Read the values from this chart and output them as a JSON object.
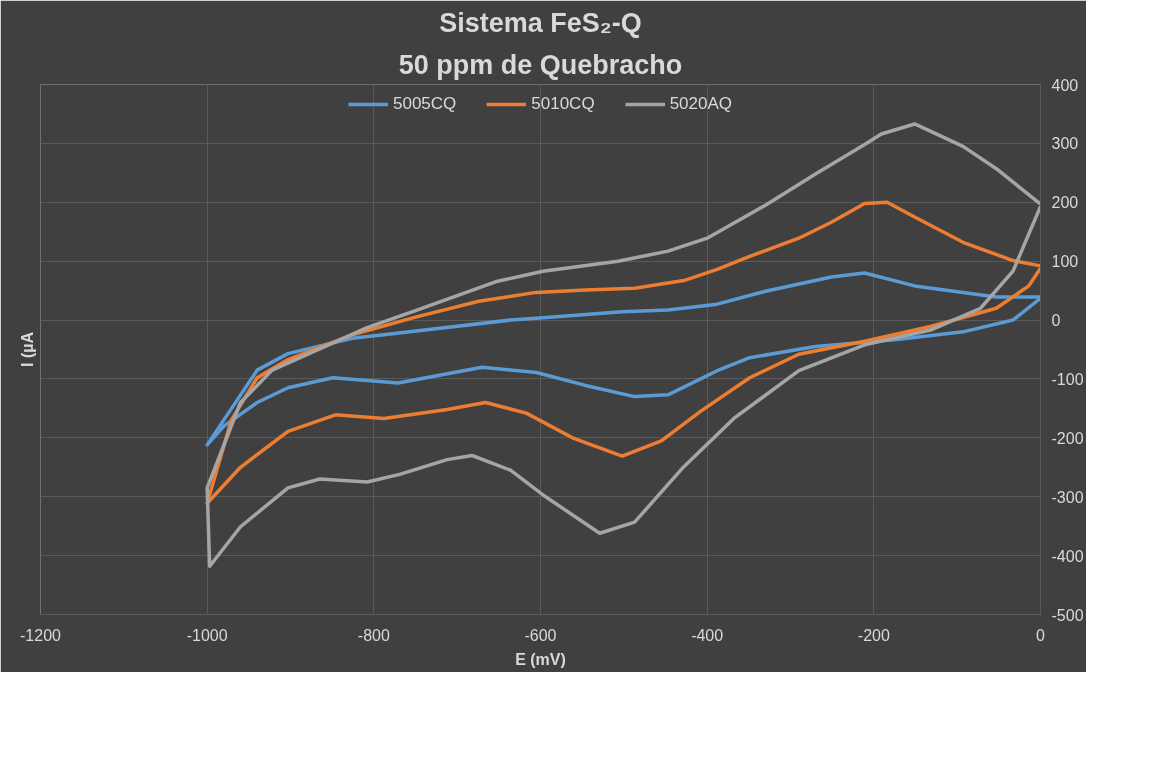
{
  "chart_data": {
    "type": "line",
    "title": "Sistema FeS₂-Q",
    "subtitle": "50 ppm de Quebracho",
    "xlabel": "E (mV)",
    "ylabel": "I (µA",
    "xlim": [
      -1200,
      0
    ],
    "xticks": [
      -1200,
      -1000,
      -800,
      -600,
      -400,
      -200,
      0
    ],
    "ylim": [
      -500,
      400
    ],
    "yticks": [
      -500,
      -400,
      -300,
      -200,
      -100,
      0,
      100,
      200,
      300,
      400
    ],
    "grid": true,
    "legend": "top",
    "marker": "none",
    "line_style": "solid",
    "series": [
      {
        "name": "5005CQ",
        "color": "#5b9bd5",
        "x": [
          0,
          -53,
          -151,
          -211,
          -251,
          -330,
          -388,
          -447,
          -502,
          -605,
          -636,
          -788,
          -826,
          -903,
          -940,
          -1000,
          -980,
          -940,
          -903,
          -849,
          -771,
          -670,
          -605,
          -546,
          -487,
          -447,
          -388,
          -349,
          -270,
          -172,
          -93,
          -33,
          0
        ],
        "values": [
          39,
          39,
          58,
          80,
          73,
          49,
          27,
          17,
          14,
          3,
          0,
          -25,
          -31,
          -57,
          -85,
          -212,
          -180,
          -140,
          -115,
          -98,
          -107,
          -80,
          -89,
          -111,
          -130,
          -127,
          -86,
          -64,
          -45,
          -33,
          -20,
          0,
          37
        ]
      },
      {
        "name": "5010CQ",
        "color": "#ed7d31",
        "x": [
          0,
          -33,
          -93,
          -151,
          -184,
          -211,
          -251,
          -290,
          -349,
          -388,
          -428,
          -487,
          -546,
          -605,
          -674,
          -750,
          -826,
          -903,
          -940,
          -971,
          -1000,
          -960,
          -903,
          -846,
          -788,
          -712,
          -666,
          -617,
          -560,
          -502,
          -455,
          -408,
          -349,
          -290,
          -211,
          -132,
          -53,
          -14,
          0
        ],
        "values": [
          92,
          101,
          132,
          175,
          200,
          198,
          166,
          139,
          108,
          86,
          67,
          54,
          51,
          47,
          32,
          5,
          -25,
          -67,
          -98,
          -170,
          -311,
          -250,
          -189,
          -161,
          -167,
          -152,
          -140,
          -158,
          -201,
          -231,
          -205,
          -155,
          -98,
          -58,
          -36,
          -11,
          20,
          58,
          88
        ]
      },
      {
        "name": "5020AQ",
        "color": "#a5a5a5",
        "x": [
          0,
          -53,
          -93,
          -151,
          -191,
          -211,
          -270,
          -330,
          -400,
          -447,
          -507,
          -597,
          -654,
          -750,
          -808,
          -865,
          -922,
          -960,
          -1000,
          -997,
          -960,
          -903,
          -865,
          -808,
          -769,
          -712,
          -682,
          -636,
          -597,
          -529,
          -487,
          -428,
          -368,
          -290,
          -211,
          -132,
          -72,
          -33,
          0
        ],
        "values": [
          197,
          257,
          295,
          333,
          316,
          298,
          248,
          195,
          139,
          117,
          100,
          83,
          65,
          16,
          -13,
          -49,
          -85,
          -140,
          -285,
          -418,
          -351,
          -285,
          -270,
          -275,
          -262,
          -237,
          -230,
          -255,
          -297,
          -362,
          -343,
          -249,
          -167,
          -86,
          -42,
          -17,
          20,
          83,
          193
        ]
      }
    ]
  }
}
